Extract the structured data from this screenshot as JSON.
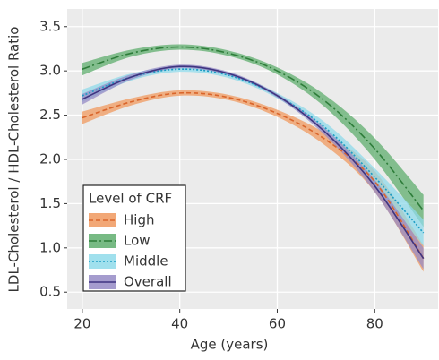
{
  "chart_data": {
    "type": "line",
    "x_label": "Age (years)",
    "y_label": "LDL-Cholesterol / HDL-Cholesterol Ratio",
    "x": [
      20,
      30,
      40,
      50,
      60,
      70,
      80,
      90
    ],
    "xlim": [
      16.9,
      93
    ],
    "xticks": [
      20,
      40,
      60,
      80
    ],
    "ylim": [
      0.31,
      3.7
    ],
    "yticks": [
      0.5,
      {
        "value": 1,
        "label": "1.0"
      },
      1.5,
      {
        "value": 2,
        "label": "2.0"
      },
      2.5,
      {
        "value": 3,
        "label": "3.0"
      },
      3.5
    ],
    "grid": true,
    "legend": {
      "title": "Level of CRF",
      "position": "bottom-left"
    },
    "series": [
      {
        "name": "High",
        "color": "#d9652b",
        "band_color": "#f0995f",
        "dash": "5,3",
        "values": [
          2.47,
          2.65,
          2.75,
          2.7,
          2.52,
          2.22,
          1.75,
          0.88
        ],
        "lower": [
          2.4,
          2.61,
          2.72,
          2.67,
          2.48,
          2.15,
          1.63,
          0.73
        ],
        "upper": [
          2.54,
          2.69,
          2.78,
          2.73,
          2.56,
          2.29,
          1.87,
          1.03
        ]
      },
      {
        "name": "Low",
        "color": "#2e7d3a",
        "band_color": "#5fae6e",
        "dash": "9,3,2,3",
        "values": [
          3.02,
          3.2,
          3.27,
          3.2,
          3.0,
          2.65,
          2.12,
          1.42
        ],
        "lower": [
          2.95,
          3.16,
          3.24,
          3.17,
          2.96,
          2.58,
          2.0,
          1.24
        ],
        "upper": [
          3.09,
          3.24,
          3.3,
          3.23,
          3.04,
          2.72,
          2.24,
          1.6
        ]
      },
      {
        "name": "Middle",
        "color": "#1b9cc4",
        "band_color": "#8fdaea",
        "dash": "2,2",
        "values": [
          2.72,
          2.93,
          3.02,
          2.95,
          2.72,
          2.35,
          1.8,
          1.17
        ],
        "lower": [
          2.65,
          2.89,
          2.99,
          2.92,
          2.69,
          2.29,
          1.7,
          1.02
        ],
        "upper": [
          2.79,
          2.97,
          3.05,
          2.98,
          2.75,
          2.41,
          1.9,
          1.32
        ]
      },
      {
        "name": "Overall",
        "color": "#3f3480",
        "band_color": "#958bc6",
        "dash": "",
        "values": [
          2.68,
          2.93,
          3.05,
          2.97,
          2.72,
          2.3,
          1.7,
          0.88
        ],
        "lower": [
          2.62,
          2.9,
          3.03,
          2.95,
          2.7,
          2.26,
          1.63,
          0.76
        ],
        "upper": [
          2.74,
          2.96,
          3.07,
          2.99,
          2.74,
          2.34,
          1.77,
          1.0
        ]
      }
    ]
  }
}
